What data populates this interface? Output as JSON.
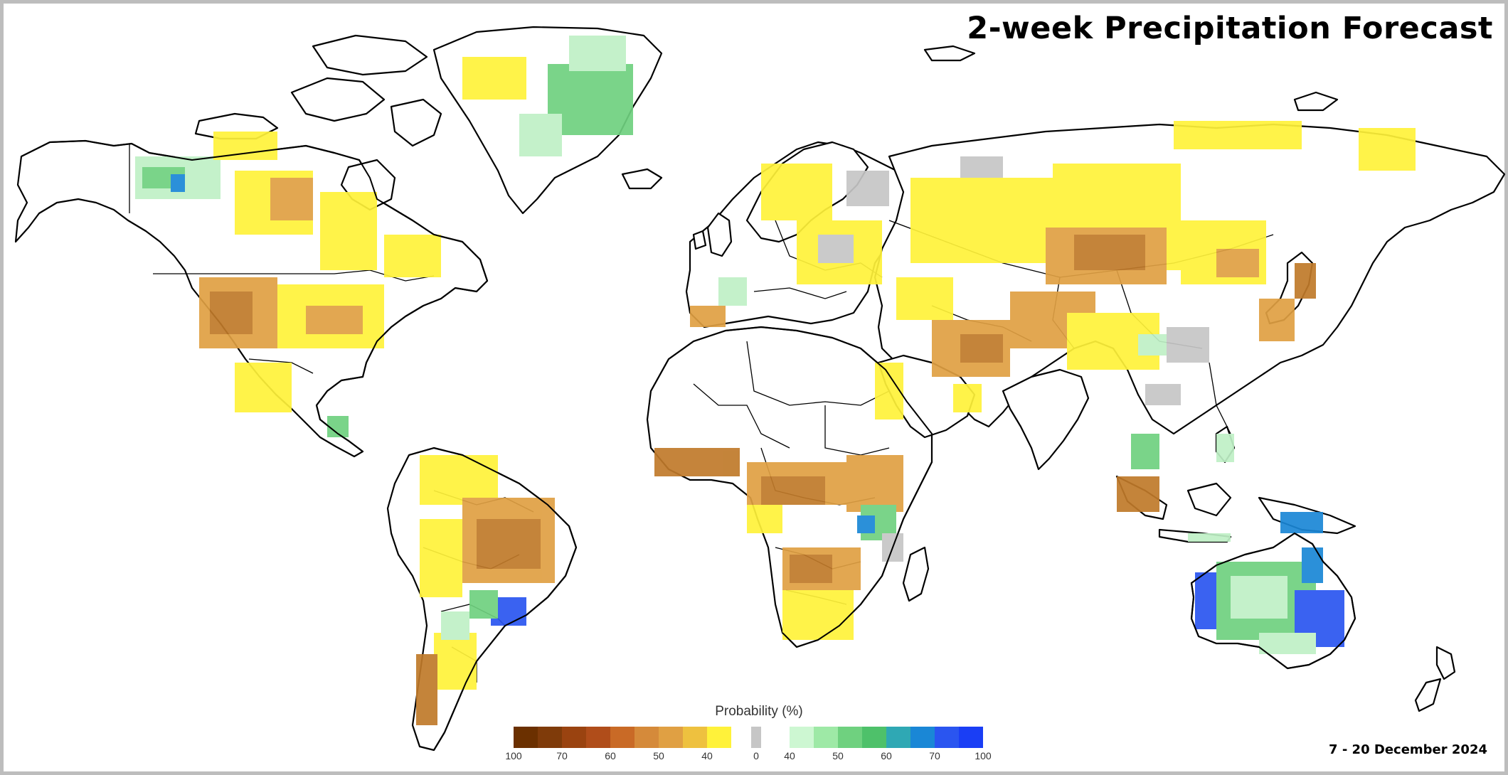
{
  "title": "2-week Precipitation Forecast",
  "date_range": "7 - 20 December 2024",
  "legend": {
    "title": "Probability (%)",
    "dry": {
      "labels": [
        "100",
        "70",
        "60",
        "50",
        "40"
      ],
      "colors": [
        "#6b3000",
        "#7f3b0a",
        "#9a4310",
        "#b04d1a",
        "#c96a26",
        "#d58a3a",
        "#e0a043",
        "#eec13f",
        "#fff23a"
      ]
    },
    "normal": {
      "label": "0",
      "color": "#c6c6c6"
    },
    "wet": {
      "labels": [
        "40",
        "50",
        "60",
        "70",
        "100"
      ],
      "colors": [
        "#cdf7d2",
        "#9ee9a6",
        "#6fd17f",
        "#4ec16a",
        "#2fa8b4",
        "#1a87d6",
        "#2a55f0",
        "#1a3ef5"
      ]
    }
  },
  "colors": {
    "dry_strong": "#c07a2a",
    "dry_moderate": "#e0a043",
    "dry_weak": "#fff23a",
    "normal": "#c6c6c6",
    "wet_weak": "#bff0c6",
    "wet_moderate": "#6fd17f",
    "wet_strong": "#1a87d6",
    "wet_very_strong": "#2a55f0",
    "land_outline": "#000000"
  }
}
